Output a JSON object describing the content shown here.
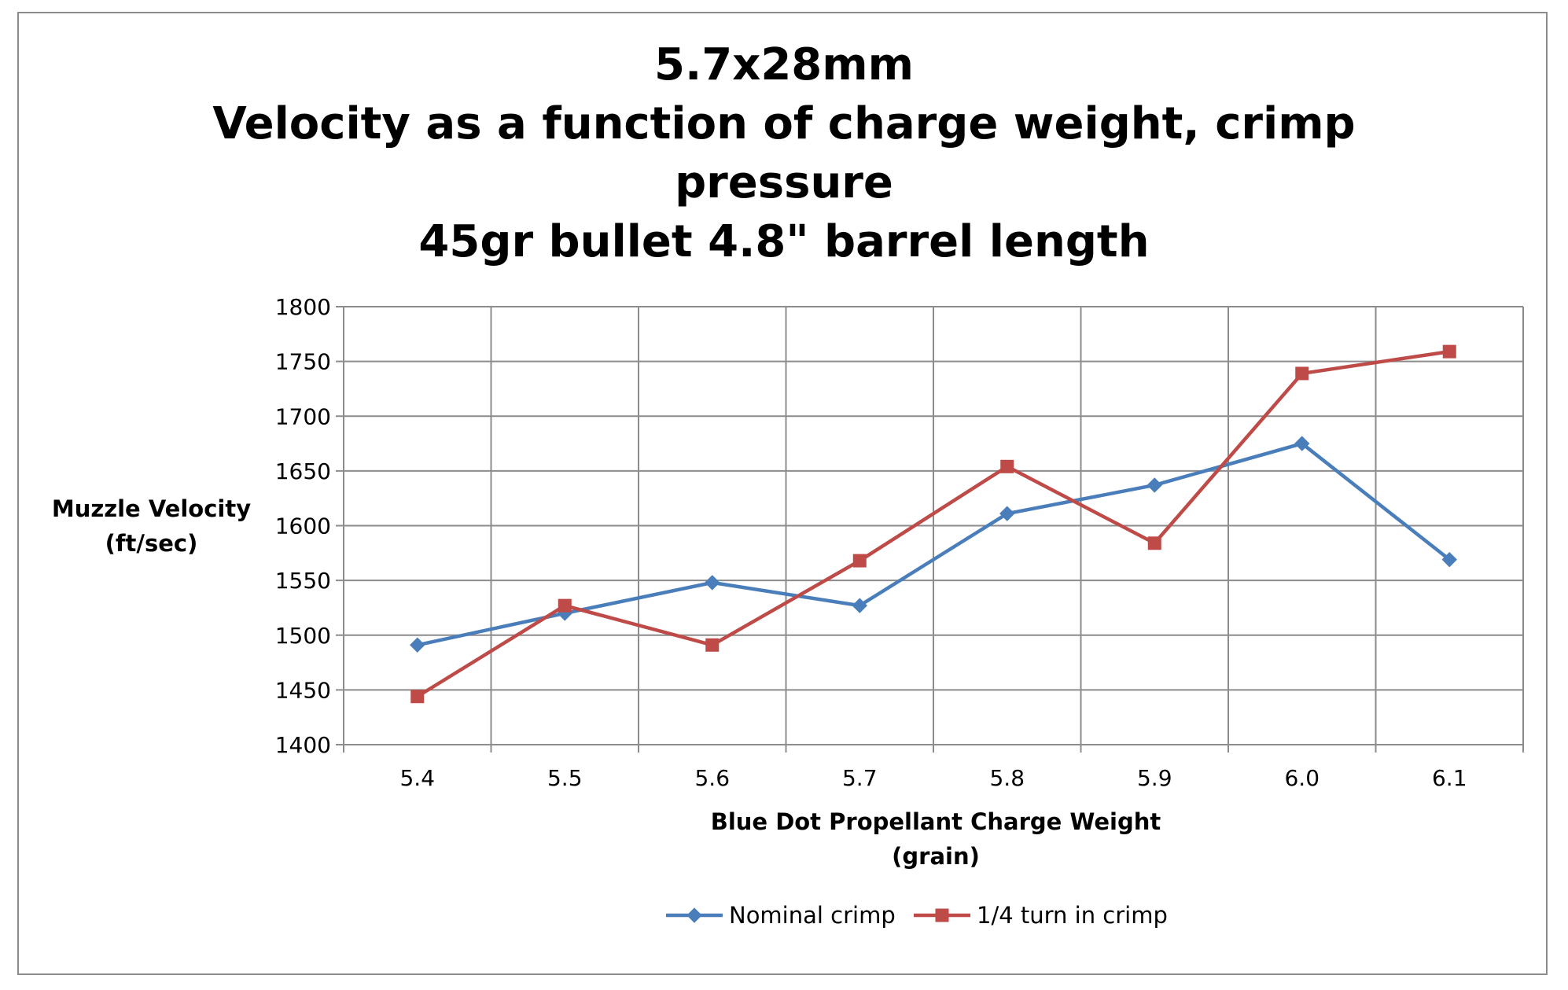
{
  "chart_data": {
    "type": "line",
    "title": [
      "5.7x28mm",
      "Velocity as a function of charge weight, crimp",
      "pressure",
      "45gr bullet  4.8\" barrel length"
    ],
    "ylabel": [
      "Muzzle Velocity",
      "(ft/sec)"
    ],
    "xlabel": [
      "Blue Dot Propellant Charge Weight",
      "(grain)"
    ],
    "categories": [
      "5.4",
      "5.5",
      "5.6",
      "5.7",
      "5.8",
      "5.9",
      "6.0",
      "6.1"
    ],
    "ylim": [
      1400,
      1800
    ],
    "yticks": [
      1400,
      1450,
      1500,
      1550,
      1600,
      1650,
      1700,
      1750,
      1800
    ],
    "grid": true,
    "legend_position": "bottom",
    "series": [
      {
        "name": "Nominal crimp",
        "marker": "diamond",
        "color": "#4a7ebb",
        "values": [
          1491,
          1520,
          1548,
          1527,
          1611,
          1637,
          1675,
          1569
        ]
      },
      {
        "name": "1/4 turn in crimp",
        "marker": "square",
        "color": "#be4b48",
        "values": [
          1444,
          1527,
          1491,
          1568,
          1654,
          1584,
          1739,
          1759
        ]
      }
    ]
  }
}
